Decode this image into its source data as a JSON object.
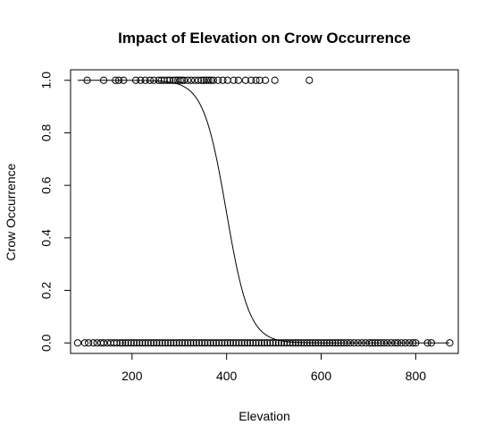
{
  "chart_data": {
    "type": "scatter",
    "title": "Impact of Elevation on Crow Occurrence",
    "xlabel": "Elevation",
    "ylabel": "Crow Occurrence",
    "xlim": [
      70,
      890
    ],
    "ylim": [
      -0.04,
      1.04
    ],
    "x_ticks": [
      200,
      400,
      600,
      800
    ],
    "y_ticks": [
      0.0,
      0.2,
      0.4,
      0.6,
      0.8,
      1.0
    ],
    "grid": false,
    "legend": "none",
    "series": [
      {
        "kind": "points",
        "marker": "open-circle",
        "points_y1_x": [
          105,
          140,
          165,
          172,
          182,
          208,
          218,
          228,
          238,
          246,
          256,
          262,
          268,
          275,
          280,
          287,
          292,
          297,
          302,
          306,
          310,
          318,
          325,
          333,
          340,
          347,
          352,
          357,
          362,
          367,
          372,
          382,
          392,
          402,
          415,
          425,
          440,
          452,
          462,
          470,
          482,
          502,
          575
        ],
        "points_y0_x": [
          85,
          100,
          108,
          118,
          126,
          134,
          140,
          148,
          155,
          162,
          168,
          175,
          180,
          186,
          192,
          198,
          204,
          210,
          216,
          222,
          228,
          234,
          240,
          246,
          252,
          258,
          264,
          270,
          276,
          282,
          288,
          294,
          300,
          306,
          312,
          318,
          324,
          330,
          336,
          342,
          348,
          354,
          360,
          366,
          372,
          378,
          384,
          390,
          396,
          402,
          408,
          414,
          420,
          426,
          432,
          438,
          444,
          450,
          456,
          462,
          468,
          474,
          480,
          486,
          492,
          498,
          504,
          510,
          516,
          522,
          528,
          534,
          540,
          546,
          552,
          558,
          564,
          570,
          576,
          582,
          588,
          594,
          600,
          606,
          612,
          618,
          624,
          630,
          636,
          642,
          648,
          655,
          662,
          670,
          678,
          686,
          694,
          702,
          708,
          714,
          720,
          726,
          733,
          740,
          748,
          756,
          762,
          770,
          778,
          786,
          794,
          800,
          825,
          833,
          872
        ]
      },
      {
        "kind": "line",
        "model": "logistic",
        "intercept": 16.5,
        "slope": -0.0413,
        "x_range": [
          85,
          872
        ]
      }
    ]
  }
}
